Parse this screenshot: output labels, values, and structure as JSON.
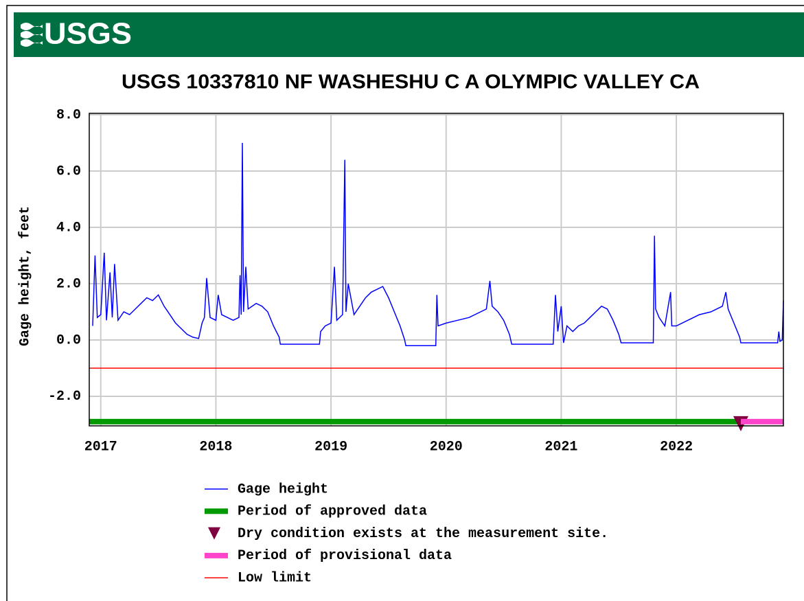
{
  "logo": "USGS",
  "chart_data": {
    "type": "line",
    "title": "USGS 10337810 NF WASHESHU C A OLYMPIC VALLEY CA",
    "y_label": "Gage height, feet",
    "xlim": [
      2016.9,
      2022.93
    ],
    "xticks": [
      2017,
      2018,
      2019,
      2020,
      2021,
      2022
    ],
    "ylim": [
      -3.05,
      8.05
    ],
    "yticks": [
      {
        "value": -2,
        "label": "-2.0"
      },
      {
        "value": 0,
        "label": "0.0"
      },
      {
        "value": 2,
        "label": "2.0"
      },
      {
        "value": 4,
        "label": "4.0"
      },
      {
        "value": 6,
        "label": "6.0"
      },
      {
        "value": 8,
        "label": "8.0"
      }
    ],
    "grid": true,
    "series": [
      {
        "name": "Gage height",
        "color": "#0000ff",
        "style": "line",
        "x": [
          2016.93,
          2016.95,
          2016.97,
          2017.0,
          2017.03,
          2017.05,
          2017.08,
          2017.1,
          2017.12,
          2017.15,
          2017.2,
          2017.25,
          2017.3,
          2017.35,
          2017.4,
          2017.45,
          2017.5,
          2017.55,
          2017.6,
          2017.65,
          2017.7,
          2017.75,
          2017.8,
          2017.85,
          2017.88,
          2017.9,
          2017.92,
          2017.95,
          2018.0,
          2018.02,
          2018.05,
          2018.1,
          2018.15,
          2018.2,
          2018.21,
          2018.22,
          2018.23,
          2018.24,
          2018.26,
          2018.28,
          2018.35,
          2018.4,
          2018.45,
          2018.5,
          2018.55,
          2018.56,
          2018.9,
          2018.91,
          2018.95,
          2019.0,
          2019.03,
          2019.05,
          2019.1,
          2019.12,
          2019.13,
          2019.15,
          2019.2,
          2019.25,
          2019.3,
          2019.35,
          2019.4,
          2019.45,
          2019.5,
          2019.55,
          2019.6,
          2019.64,
          2019.65,
          2019.91,
          2019.92,
          2019.93,
          2020.0,
          2020.1,
          2020.2,
          2020.3,
          2020.35,
          2020.38,
          2020.4,
          2020.45,
          2020.5,
          2020.55,
          2020.57,
          2020.93,
          2020.95,
          2020.97,
          2021.0,
          2021.02,
          2021.05,
          2021.1,
          2021.15,
          2021.2,
          2021.25,
          2021.3,
          2021.35,
          2021.4,
          2021.45,
          2021.5,
          2021.52,
          2021.8,
          2021.81,
          2021.82,
          2021.85,
          2021.9,
          2021.95,
          2021.96,
          2022.0,
          2022.1,
          2022.2,
          2022.3,
          2022.4,
          2022.43,
          2022.45,
          2022.5,
          2022.55,
          2022.56,
          2022.88,
          2022.89,
          2022.9,
          2022.92,
          2022.93
        ],
        "values": [
          0.5,
          3.0,
          0.8,
          0.9,
          3.1,
          0.7,
          2.4,
          0.8,
          2.7,
          0.7,
          1.0,
          0.9,
          1.1,
          1.3,
          1.5,
          1.4,
          1.6,
          1.2,
          0.9,
          0.6,
          0.4,
          0.2,
          0.1,
          0.05,
          0.6,
          0.8,
          2.2,
          0.8,
          0.7,
          1.6,
          0.9,
          0.8,
          0.7,
          0.8,
          2.3,
          0.9,
          7.0,
          1.0,
          2.6,
          1.1,
          1.3,
          1.2,
          1.0,
          0.5,
          0.1,
          -0.15,
          -0.15,
          0.3,
          0.5,
          0.6,
          2.6,
          0.7,
          0.9,
          6.4,
          1.0,
          2.0,
          0.9,
          1.2,
          1.5,
          1.7,
          1.8,
          1.9,
          1.5,
          1.0,
          0.5,
          0.0,
          -0.2,
          -0.2,
          1.6,
          0.5,
          0.6,
          0.7,
          0.8,
          1.0,
          1.1,
          2.1,
          1.2,
          1.0,
          0.7,
          0.2,
          -0.15,
          -0.15,
          1.6,
          0.3,
          1.2,
          -0.1,
          0.5,
          0.3,
          0.5,
          0.6,
          0.8,
          1.0,
          1.2,
          1.1,
          0.7,
          0.2,
          -0.1,
          -0.1,
          3.7,
          1.1,
          0.8,
          0.5,
          1.7,
          0.5,
          0.5,
          0.7,
          0.9,
          1.0,
          1.2,
          1.7,
          1.1,
          0.6,
          0.1,
          -0.1,
          -0.1,
          0.3,
          -0.05,
          0.0,
          1.4
        ]
      },
      {
        "name": "Period of approved data",
        "color": "#009900",
        "style": "band",
        "x": [
          2016.9,
          2022.56
        ],
        "values": [
          -2.9,
          -2.9
        ]
      },
      {
        "name": "Dry condition exists at the measurement site.",
        "color": "#800040",
        "style": "marker",
        "x": [
          2022.56
        ],
        "values": [
          -2.9
        ]
      },
      {
        "name": "Period of provisional data",
        "color": "#ff44cc",
        "style": "band",
        "x": [
          2022.56,
          2022.93
        ],
        "values": [
          -2.9,
          -2.9
        ]
      },
      {
        "name": "Low limit",
        "color": "#ff0000",
        "style": "line",
        "x": [
          2016.9,
          2022.93
        ],
        "values": [
          -1,
          -1
        ]
      }
    ]
  }
}
